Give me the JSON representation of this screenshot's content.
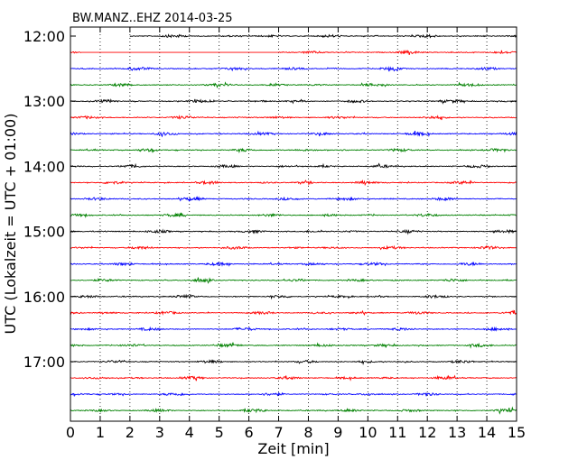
{
  "chart_data": {
    "type": "line",
    "title": "BW.MANZ..EHZ 2014-03-25",
    "xlabel": "Zeit  [min]",
    "ylabel": "UTC (Lokalzeit = UTC + 01:00)",
    "xlim": [
      0,
      15
    ],
    "x_ticks": [
      "0",
      "1",
      "2",
      "3",
      "4",
      "5",
      "6",
      "7",
      "8",
      "9",
      "10",
      "11",
      "12",
      "13",
      "14",
      "15"
    ],
    "y_ticks": [
      "12:00",
      "13:00",
      "14:00",
      "15:00",
      "16:00",
      "17:00"
    ],
    "grid_x": "dotted vertical lines at each minute",
    "colors": [
      "#000000",
      "#ff0000",
      "#0000ff",
      "#008000"
    ],
    "series": [
      {
        "start": "12:00",
        "color": "#000000",
        "data_start_min": 2.0
      },
      {
        "start": "12:15",
        "color": "#ff0000",
        "gap": [
          0.35,
          7.0
        ]
      },
      {
        "start": "12:30",
        "color": "#0000ff"
      },
      {
        "start": "12:45",
        "color": "#008000"
      },
      {
        "start": "13:00",
        "color": "#000000"
      },
      {
        "start": "13:15",
        "color": "#ff0000"
      },
      {
        "start": "13:30",
        "color": "#0000ff"
      },
      {
        "start": "13:45",
        "color": "#008000"
      },
      {
        "start": "14:00",
        "color": "#000000"
      },
      {
        "start": "14:15",
        "color": "#ff0000"
      },
      {
        "start": "14:30",
        "color": "#0000ff"
      },
      {
        "start": "14:45",
        "color": "#008000"
      },
      {
        "start": "15:00",
        "color": "#000000"
      },
      {
        "start": "15:15",
        "color": "#ff0000"
      },
      {
        "start": "15:30",
        "color": "#0000ff"
      },
      {
        "start": "15:45",
        "color": "#008000"
      },
      {
        "start": "16:00",
        "color": "#000000"
      },
      {
        "start": "16:15",
        "color": "#ff0000"
      },
      {
        "start": "16:30",
        "color": "#0000ff"
      },
      {
        "start": "16:45",
        "color": "#008000"
      },
      {
        "start": "17:00",
        "color": "#000000"
      },
      {
        "start": "17:15",
        "color": "#ff0000"
      },
      {
        "start": "17:30",
        "color": "#0000ff"
      },
      {
        "start": "17:45",
        "color": "#008000"
      }
    ]
  }
}
